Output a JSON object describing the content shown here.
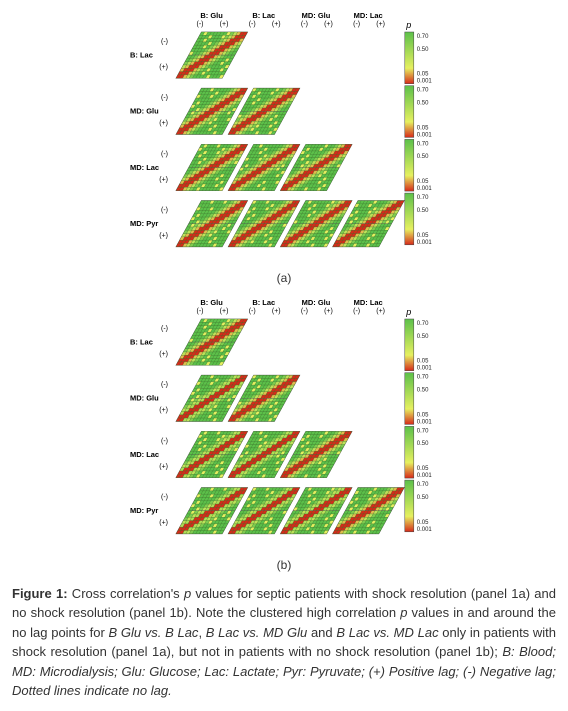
{
  "figure": {
    "panel_a_label": "(a)",
    "panel_b_label": "(b)",
    "colorbar_title": "p",
    "colorbar_ticks": [
      "0.70",
      "0.50",
      "0.05",
      "0.001",
      "0.70",
      "0.50",
      "0.05",
      "0.001",
      "0.70",
      "0.50",
      "0.05",
      "0.001",
      "0.70",
      "0.50",
      "0.05",
      "0.001"
    ],
    "col_headers": [
      "B: Glu",
      "B: Lac",
      "MD: Glu",
      "MD: Lac"
    ],
    "col_sub": [
      "(-)",
      "(+)"
    ],
    "row_headers": [
      "B: Lac",
      "MD: Glu",
      "MD: Lac",
      "MD: Pyr"
    ],
    "row_sub": [
      "(-)",
      "(+)"
    ],
    "panel": {
      "cell_size": 3.3,
      "block_cells": 14,
      "n_cols": 4,
      "n_rows": 4,
      "axis_gap": 3
    },
    "colors": {
      "high_p": "#5cc04a",
      "mid_p": "#e6f060",
      "low_p": "#d62a1a",
      "grid": "#3a6b2a",
      "bg": "#ffffff",
      "border": "#444444",
      "text": "#222222",
      "dotted": "#606060"
    },
    "panel_a": {
      "diag_red_strength": 0.85,
      "off_diag_highlight": [
        [
          0,
          0
        ],
        [
          1,
          0
        ],
        [
          1,
          1
        ],
        [
          2,
          1
        ],
        [
          2,
          2
        ],
        [
          3,
          2
        ],
        [
          3,
          3
        ]
      ]
    },
    "panel_b": {
      "diag_red_strength": 0.9,
      "offset_similar": true
    }
  },
  "caption": {
    "lead_bold": "Figure 1:",
    "lead_rest": " Cross correlation's ",
    "p_italic": "p",
    "after_p": " values for septic patients with shock resolution (panel 1a) and no shock resolution (panel 1b). Note the clustered high correlation ",
    "p_italic2": "p",
    "after_p2": " values in and around the no lag points for ",
    "i1": "B Glu vs. B Lac",
    "sep1": ", ",
    "i2": "B Lac vs. MD Glu",
    "sep2": " and ",
    "i3": "B Lac vs. MD Lac",
    "after_i": " only in patients with shock resolution (panel 1a), but not in patients with no shock resolution (panel 1b); ",
    "defs_italic": "B: Blood; MD: Microdialysis; Glu: Glucose; Lac: Lactate; Pyr: Pyruvate; (+) Positive lag; (-) Negative lag; Dotted lines indicate no lag."
  }
}
